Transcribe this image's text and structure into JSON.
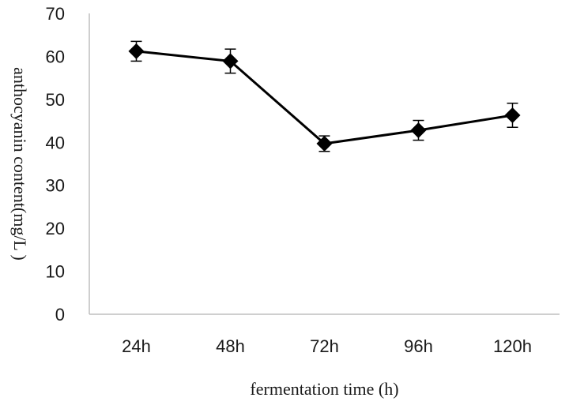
{
  "chart_data": {
    "type": "line",
    "title": "",
    "xlabel": "fermentation time (h)",
    "ylabel": "anthocyanin content(mg/L )",
    "categories": [
      "24h",
      "48h",
      "72h",
      "96h",
      "120h"
    ],
    "series": [
      {
        "name": "",
        "values": [
          61.2,
          58.9,
          39.7,
          42.8,
          46.3
        ],
        "error": [
          2.3,
          2.8,
          1.8,
          2.3,
          2.8
        ],
        "color": "#000000",
        "marker": "diamond"
      }
    ],
    "ylim": [
      0,
      70
    ],
    "yticks": [
      "0",
      "10",
      "20",
      "30",
      "40",
      "50",
      "60",
      "70"
    ],
    "grid": false,
    "legend": "none"
  }
}
